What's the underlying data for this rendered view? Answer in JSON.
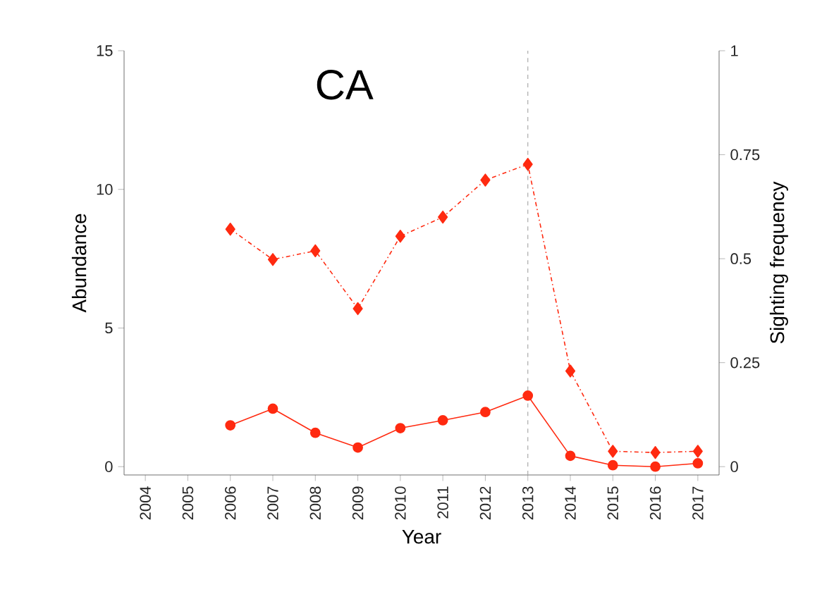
{
  "chart_data": {
    "type": "line",
    "title": "CA",
    "xlabel": "Year",
    "ylabel": "Abundance",
    "y2label": "Sighting frequency",
    "x": [
      2006,
      2007,
      2008,
      2009,
      2010,
      2011,
      2012,
      2013,
      2014,
      2015,
      2016,
      2017
    ],
    "series": [
      {
        "color": "#ff2a10",
        "marker": "diamond",
        "line_style": "dashed",
        "axis": "y2",
        "values": [
          0.571,
          0.498,
          0.519,
          0.38,
          0.554,
          0.6,
          0.689,
          0.727,
          0.23,
          0.037,
          0.034,
          0.037
        ]
      },
      {
        "color": "#ff2a10",
        "marker": "circle",
        "line_style": "solid",
        "values": [
          1.49,
          2.09,
          1.22,
          0.69,
          1.39,
          1.67,
          1.97,
          2.56,
          0.39,
          0.05,
          0,
          0.12
        ]
      }
    ],
    "xlim": [
      2003.5,
      2017.5
    ],
    "xticks": [
      2004,
      2005,
      2006,
      2007,
      2008,
      2009,
      2010,
      2011,
      2012,
      2013,
      2014,
      2015,
      2016,
      2017
    ],
    "ylim": [
      -0.3,
      15
    ],
    "yticks": [
      0,
      5,
      10,
      15
    ],
    "y2lim": [
      -0.02,
      1
    ],
    "y2ticks": [
      0,
      0.25,
      0.5,
      0.75,
      1
    ],
    "ref_lines": [
      {
        "axis": "x",
        "value": 2013,
        "color": "#aaaaaa",
        "line_style": "dashed"
      }
    ]
  }
}
